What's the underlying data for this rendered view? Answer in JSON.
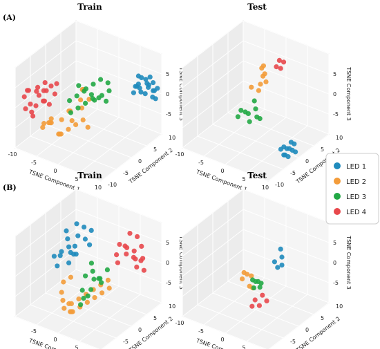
{
  "figure": {
    "panel_labels": [
      "(A)",
      "(B)"
    ],
    "legend": [
      {
        "label": "LED 1",
        "color": "#1f8bbd"
      },
      {
        "label": "LED 2",
        "color": "#f39c3a"
      },
      {
        "label": "LED 3",
        "color": "#22a845"
      },
      {
        "label": "LED 4",
        "color": "#e8484c"
      }
    ]
  },
  "chart_data": [
    {
      "type": "scatter",
      "panel": "(A)",
      "title": "Train",
      "xlabel": "TSNE Component 1",
      "ylabel": "TSNE Component 2",
      "zlabel": "TSNE Component 3",
      "x_ticks": [
        "-10",
        "-5",
        "0",
        "5",
        "10"
      ],
      "y_ticks": [
        "-10",
        "-5",
        "0",
        "5",
        "10"
      ],
      "z_ticks": [
        "-5",
        "0",
        "5"
      ],
      "grid": true,
      "series": [
        {
          "name": "LED 1",
          "x": [
            6,
            7,
            8,
            9,
            8,
            7,
            6,
            9,
            10,
            8,
            7,
            6,
            8,
            9,
            7,
            10,
            9,
            8,
            7,
            6
          ],
          "y": [
            8,
            9,
            10,
            9,
            8,
            7,
            8,
            6,
            7,
            10,
            10,
            9,
            6,
            7,
            5,
            8,
            10,
            9,
            6,
            7
          ],
          "z": [
            2,
            3,
            2,
            1,
            3,
            2,
            4,
            2,
            1,
            0,
            1,
            3,
            2,
            3,
            2,
            0,
            1,
            4,
            3,
            2
          ]
        },
        {
          "name": "LED 2",
          "x": [
            -5,
            -4,
            -3,
            -5,
            -2,
            -1,
            0,
            1,
            2,
            3,
            2,
            1,
            0,
            -1,
            -2,
            -3,
            -4,
            3,
            1,
            0,
            -1,
            2
          ],
          "y": [
            -8,
            -7,
            -8,
            -6,
            -7,
            -8,
            -9,
            -8,
            -7,
            -6,
            -5,
            -4,
            -6,
            -5,
            -6,
            -8,
            -9,
            -4,
            -3,
            -2,
            -4,
            -3
          ],
          "z": [
            -4,
            -3,
            -2,
            -4,
            -5,
            -4,
            -3,
            -2,
            -1,
            0,
            2,
            3,
            1,
            0,
            -2,
            -1,
            -2,
            4,
            5,
            4,
            -3,
            -4
          ]
        },
        {
          "name": "LED 3",
          "x": [
            -3,
            -2,
            -1,
            0,
            1,
            2,
            -2,
            -1,
            0,
            1,
            -3,
            -2,
            0,
            1,
            2,
            -1,
            0,
            1
          ],
          "y": [
            -2,
            -1,
            0,
            1,
            2,
            3,
            -3,
            -2,
            -1,
            0,
            1,
            2,
            2,
            3,
            4,
            3,
            4,
            5
          ],
          "z": [
            0,
            1,
            2,
            1,
            0,
            -1,
            -2,
            -1,
            0,
            1,
            2,
            1,
            -1,
            0,
            1,
            2,
            3,
            2
          ]
        },
        {
          "name": "LED 4",
          "x": [
            -10,
            -9,
            -8,
            -9,
            -10,
            -8,
            -7,
            -9,
            -10,
            -8,
            -7,
            -6,
            -9,
            -8,
            -10,
            -7,
            -6,
            -5,
            -8,
            -9
          ],
          "y": [
            -6,
            -7,
            -5,
            -4,
            -3,
            -6,
            -5,
            -8,
            -5,
            -3,
            -4,
            -6,
            -2,
            -7,
            -7,
            -3,
            -2,
            -4,
            -1,
            -6
          ],
          "z": [
            2,
            3,
            1,
            2,
            0,
            -1,
            0,
            -1,
            -2,
            3,
            2,
            1,
            0,
            -3,
            1,
            -2,
            3,
            2,
            1,
            -3
          ]
        }
      ]
    },
    {
      "type": "scatter",
      "panel": "(A)",
      "title": "Test",
      "xlabel": "TSNE Component 1",
      "ylabel": "TSNE Component 2",
      "zlabel": "TSNE Component 3",
      "x_ticks": [
        "-10",
        "-5",
        "0",
        "5",
        "10"
      ],
      "y_ticks": [
        "-10",
        "-5",
        "0",
        "5",
        "10"
      ],
      "z_ticks": [
        "-5",
        "0",
        "5"
      ],
      "grid": true,
      "series": [
        {
          "name": "LED 1",
          "x": [
            8,
            9,
            10,
            9,
            8,
            10,
            9,
            8,
            10,
            9,
            8
          ],
          "y": [
            -2,
            -1,
            -2,
            -3,
            -1,
            -1,
            -2,
            -3,
            -3,
            0,
            -2
          ],
          "z": [
            -7,
            -6,
            -7,
            -8,
            -8,
            -8,
            -9,
            -7,
            -6,
            -7,
            -9
          ]
        },
        {
          "name": "LED 2",
          "x": [
            -1,
            0,
            1,
            0,
            -1,
            1,
            0,
            -1
          ],
          "y": [
            0,
            1,
            2,
            3,
            4,
            1,
            2,
            3
          ],
          "z": [
            3,
            2,
            4,
            5,
            6,
            6,
            7,
            2
          ]
        },
        {
          "name": "LED 3",
          "x": [
            -2,
            -1,
            0,
            1,
            -2,
            -1,
            0,
            1,
            -1
          ],
          "y": [
            -2,
            -1,
            0,
            -1,
            -3,
            -2,
            -2,
            0,
            1
          ],
          "z": [
            -2,
            -3,
            -2,
            -3,
            -3,
            -2,
            -4,
            -4,
            -1
          ]
        },
        {
          "name": "LED 4",
          "x": [
            2,
            3,
            2,
            3
          ],
          "y": [
            4,
            5,
            5,
            4
          ],
          "z": [
            7,
            8,
            8,
            7
          ]
        }
      ]
    },
    {
      "type": "scatter",
      "panel": "(B)",
      "title": "Train",
      "xlabel": "TSNE Component 1",
      "ylabel": "TSNE Component 2",
      "zlabel": "TSNE Component 3",
      "x_ticks": [
        "-5",
        "0",
        "5"
      ],
      "y_ticks": [
        "-10",
        "-5",
        "0",
        "5",
        "10"
      ],
      "z_ticks": [
        "-5",
        "0",
        "5"
      ],
      "grid": true,
      "series": [
        {
          "name": "LED 1",
          "x": [
            -8,
            -7,
            -6,
            -7,
            -8,
            -6,
            -5,
            -7,
            -6,
            -8,
            -7,
            -5,
            -6,
            -7,
            -8,
            -6,
            -5,
            -4
          ],
          "y": [
            0,
            1,
            2,
            3,
            4,
            5,
            6,
            4,
            2,
            1,
            6,
            3,
            4,
            5,
            2,
            7,
            8,
            6
          ],
          "z": [
            0,
            1,
            2,
            3,
            4,
            3,
            2,
            -1,
            -2,
            -3,
            5,
            0,
            1,
            -2,
            -1,
            4,
            3,
            1
          ]
        },
        {
          "name": "LED 2",
          "x": [
            -2,
            -1,
            0,
            1,
            2,
            3,
            4,
            5,
            6,
            -1,
            0,
            1,
            2,
            3,
            4,
            5,
            6,
            7,
            -3,
            -2
          ],
          "y": [
            -6,
            -7,
            -8,
            -7,
            -6,
            -5,
            -4,
            -3,
            -2,
            -5,
            -6,
            -7,
            -8,
            -7,
            -6,
            -5,
            -4,
            -3,
            -4,
            -3
          ],
          "z": [
            -3,
            -4,
            -5,
            -4,
            -3,
            -2,
            -1,
            0,
            1,
            -6,
            -7,
            -6,
            -5,
            -4,
            -3,
            -2,
            -1,
            0,
            -2,
            -1
          ]
        },
        {
          "name": "LED 3",
          "x": [
            0,
            1,
            2,
            1,
            0,
            2,
            3,
            1,
            2,
            0,
            1,
            2,
            3
          ],
          "y": [
            -1,
            0,
            1,
            2,
            -2,
            -1,
            0,
            -3,
            -2,
            1,
            -4,
            -3,
            2
          ],
          "z": [
            -1,
            0,
            -2,
            -3,
            -4,
            -1,
            -2,
            -5,
            -3,
            1,
            -6,
            -4,
            0
          ]
        },
        {
          "name": "LED 4",
          "x": [
            3,
            4,
            5,
            6,
            7,
            5,
            6,
            7,
            8,
            4,
            5,
            6,
            7,
            8,
            3,
            4
          ],
          "y": [
            6,
            7,
            8,
            7,
            6,
            5,
            4,
            5,
            6,
            8,
            9,
            9,
            8,
            7,
            5,
            4
          ],
          "z": [
            4,
            3,
            2,
            1,
            0,
            5,
            4,
            3,
            2,
            6,
            5,
            3,
            1,
            -1,
            2,
            1
          ]
        }
      ]
    },
    {
      "type": "scatter",
      "panel": "(B)",
      "title": "Test",
      "xlabel": "TSNE Component 1",
      "ylabel": "TSNE Component 2",
      "zlabel": "TSNE Component 3",
      "x_ticks": [
        "-10",
        "-5",
        "0",
        "5",
        "10"
      ],
      "y_ticks": [
        "-10",
        "-5",
        "0",
        "5",
        "10"
      ],
      "z_ticks": [
        "-5",
        "0",
        "5"
      ],
      "grid": true,
      "series": [
        {
          "name": "LED 1",
          "x": [
            3,
            4,
            3,
            4,
            3
          ],
          "y": [
            2,
            3,
            4,
            3,
            3
          ],
          "z": [
            2,
            3,
            4,
            1,
            0
          ]
        },
        {
          "name": "LED 2",
          "x": [
            -2,
            -1,
            0,
            -1,
            -2,
            0
          ],
          "y": [
            -1,
            0,
            -2,
            -3,
            0,
            -1
          ],
          "z": [
            -1,
            -2,
            -3,
            -1,
            -2,
            -4
          ]
        },
        {
          "name": "LED 3",
          "x": [
            0,
            1,
            2,
            1,
            0,
            2
          ],
          "y": [
            -1,
            -2,
            -1,
            0,
            0,
            -2
          ],
          "z": [
            -2,
            -3,
            -2,
            -4,
            -3,
            -1
          ]
        },
        {
          "name": "LED 4",
          "x": [
            2,
            3,
            2,
            3,
            4
          ],
          "y": [
            -3,
            -2,
            -4,
            -3,
            -2
          ],
          "z": [
            -5,
            -4,
            -6,
            -6,
            -5
          ]
        }
      ]
    }
  ]
}
